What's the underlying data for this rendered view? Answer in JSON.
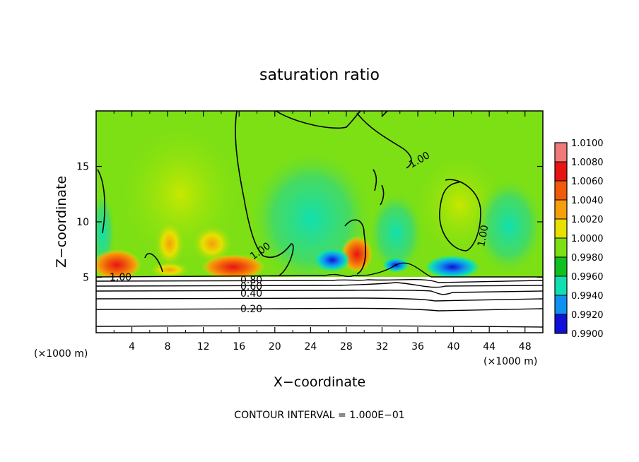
{
  "chart_data": {
    "type": "heatmap",
    "title": "saturation ratio",
    "xlabel": "X−coordinate",
    "ylabel": "Z−coordinate",
    "x_unit": "(×1000 m)",
    "y_unit": "(×1000 m)",
    "xlim": [
      0,
      50
    ],
    "ylim": [
      0,
      20
    ],
    "x_ticks": [
      "4",
      "8",
      "12",
      "16",
      "20",
      "24",
      "28",
      "32",
      "36",
      "40",
      "44",
      "48"
    ],
    "y_ticks": [
      "5",
      "10",
      "15"
    ],
    "colorbar": {
      "labels": [
        "1.0100",
        "1.0080",
        "1.0060",
        "1.0040",
        "1.0020",
        "1.0000",
        "0.9980",
        "0.9960",
        "0.9940",
        "0.9920",
        "0.9900"
      ],
      "colors": [
        "#f07a7a",
        "#e81414",
        "#f05a0a",
        "#f5a00a",
        "#e8e000",
        "#7ce014",
        "#10c020",
        "#10e0b0",
        "#1090f0",
        "#1010d8",
        "#6010a8"
      ]
    },
    "contour_labels": [
      "1.00",
      "1.00",
      "1.00",
      "1.00",
      "0.80",
      "0.60",
      "0.40",
      "0.20"
    ],
    "footer": "CONTOUR INTERVAL = 1.000E−01",
    "grid": false
  }
}
